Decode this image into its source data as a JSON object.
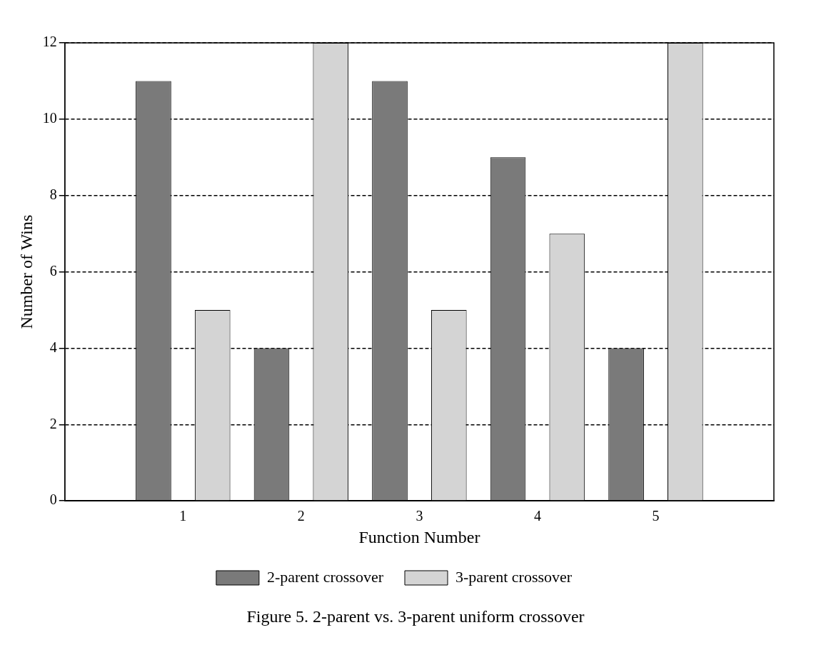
{
  "chart_data": {
    "type": "bar",
    "xlabel": "Function Number",
    "ylabel": "Number of Wins",
    "x": [
      1,
      2,
      3,
      4,
      5
    ],
    "xlim": [
      0,
      6
    ],
    "xticks": [
      1,
      2,
      3,
      4,
      5
    ],
    "ylim": [
      0,
      12
    ],
    "yticks": [
      0,
      2,
      4,
      6,
      8,
      10,
      12
    ],
    "grid": "y",
    "legend": "bottom",
    "series": [
      {
        "name": "2-parent crossover",
        "color": "#7a7a7a",
        "values": [
          11,
          4,
          11,
          9,
          4
        ]
      },
      {
        "name": "3-parent crossover",
        "color": "#d4d4d4",
        "values": [
          5,
          12,
          5,
          7,
          12
        ]
      }
    ],
    "annotations": [
      "Figure 5.  2-parent vs. 3-parent uniform crossover"
    ]
  }
}
